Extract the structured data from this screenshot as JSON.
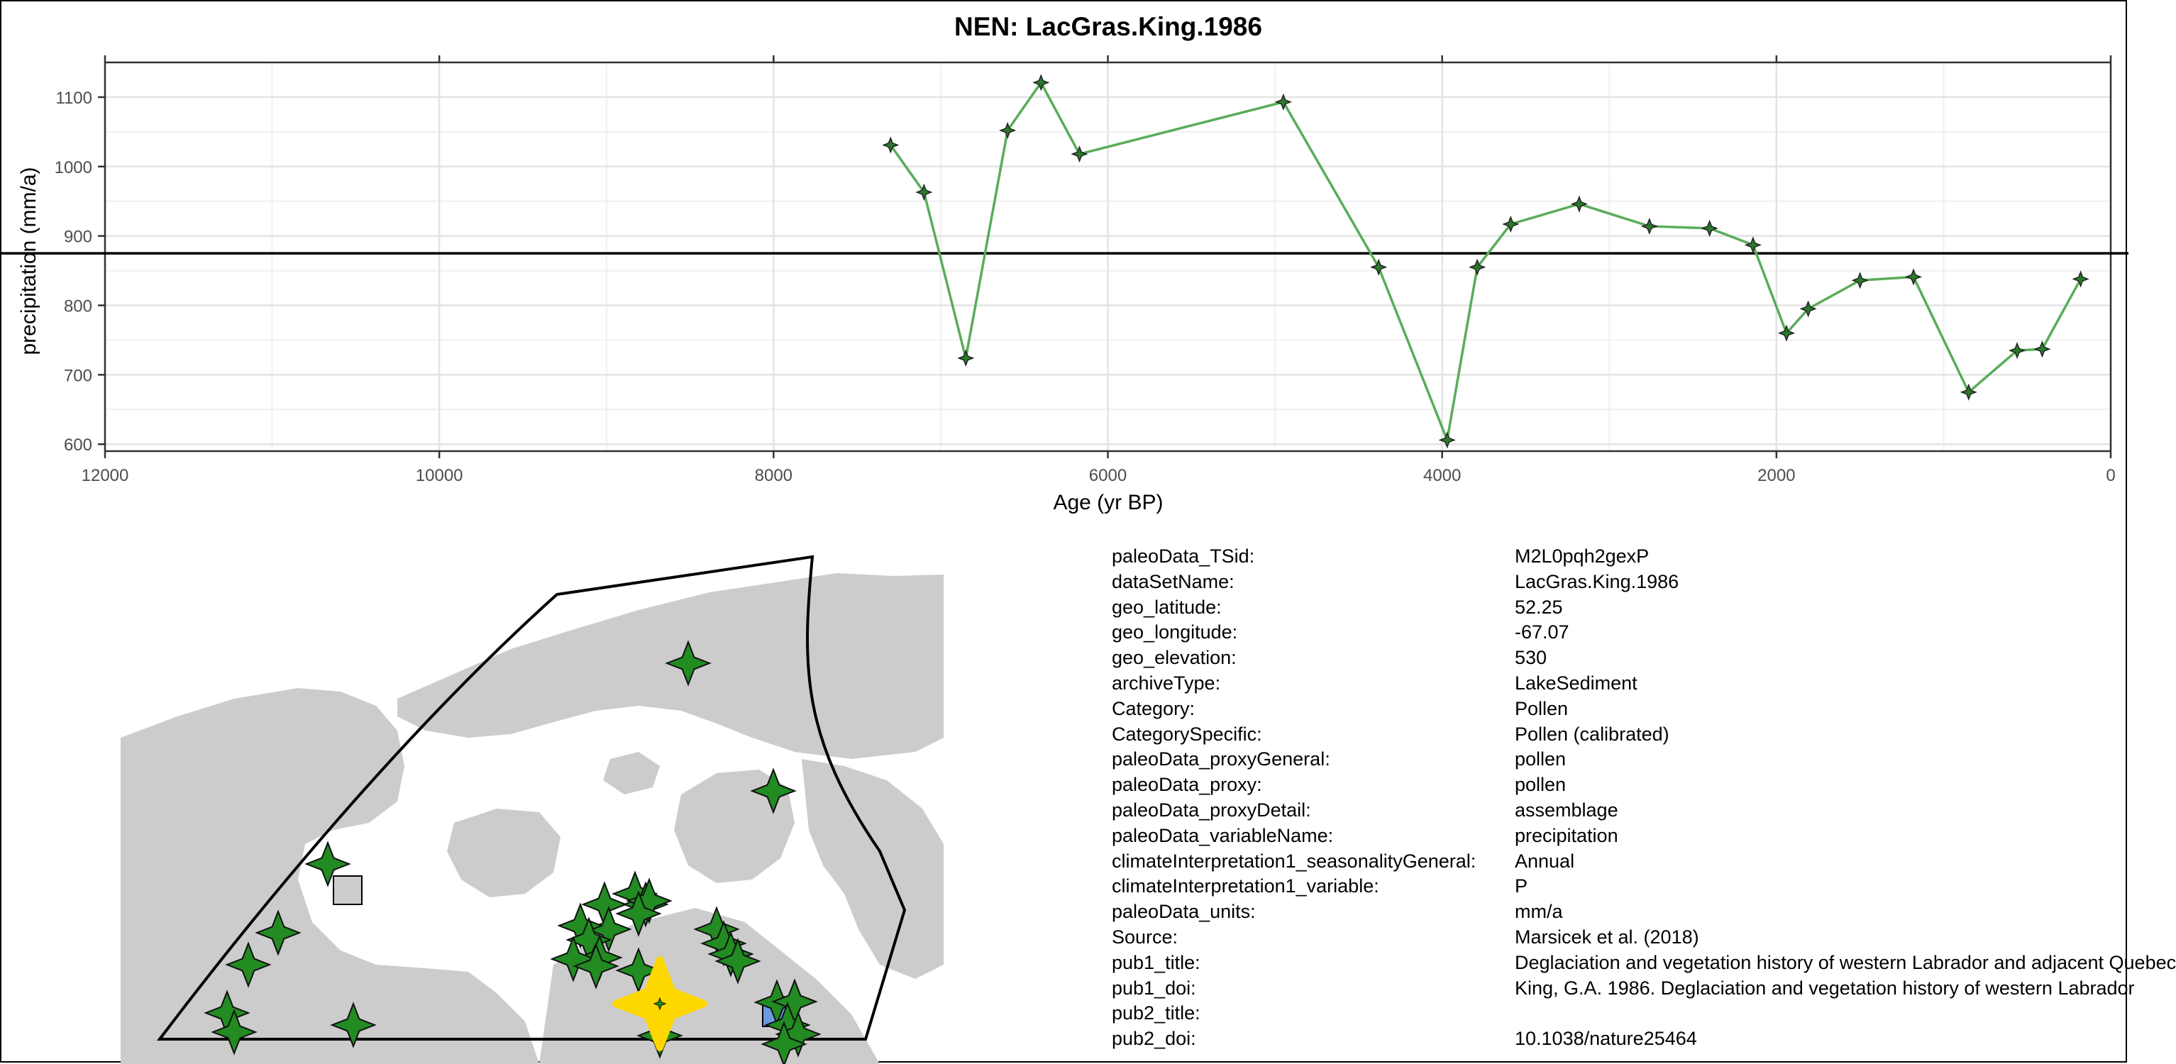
{
  "chart_data": {
    "type": "line",
    "title": "NEN: LacGras.King.1986",
    "xlabel": "Age (yr BP)",
    "ylabel": "precipitation (mm/a)",
    "x_reversed": true,
    "xlim": [
      12000,
      0
    ],
    "ylim": [
      590,
      1150
    ],
    "x_ticks": [
      12000,
      10000,
      8000,
      6000,
      4000,
      2000,
      0
    ],
    "y_ticks": [
      600,
      700,
      800,
      900,
      1000,
      1100
    ],
    "reference_line_y": 875,
    "grid": true,
    "line_color": "#5aac5a",
    "marker": "four-point-star",
    "series": [
      {
        "x": [
          7300,
          7100,
          6850,
          6600,
          6400,
          6170,
          4950,
          4380,
          3970,
          3790,
          3590,
          3180,
          2760,
          2400,
          2140,
          1940,
          1810,
          1500,
          1180,
          850,
          560,
          410,
          180
        ],
        "values": [
          1031,
          963,
          724,
          1052,
          1121,
          1018,
          1093,
          855,
          606,
          855,
          917,
          946,
          914,
          911,
          887,
          760,
          795,
          836,
          841,
          675,
          735,
          737,
          838
        ]
      }
    ]
  },
  "map": {
    "land_color": "#cccccc",
    "site_color": "#228b22",
    "target_color": "#ffd700"
  },
  "metadata": [
    {
      "key": "paleoData_TSid:",
      "value": "M2L0pqh2gexP"
    },
    {
      "key": "dataSetName:",
      "value": "LacGras.King.1986"
    },
    {
      "key": "geo_latitude:",
      "value": "52.25"
    },
    {
      "key": "geo_longitude:",
      "value": "-67.07"
    },
    {
      "key": "geo_elevation:",
      "value": "530"
    },
    {
      "key": "archiveType:",
      "value": "LakeSediment"
    },
    {
      "key": "Category:",
      "value": "Pollen"
    },
    {
      "key": "CategorySpecific:",
      "value": "Pollen (calibrated)"
    },
    {
      "key": "paleoData_proxyGeneral:",
      "value": "pollen"
    },
    {
      "key": "paleoData_proxy:",
      "value": "pollen"
    },
    {
      "key": "paleoData_proxyDetail:",
      "value": "assemblage"
    },
    {
      "key": "paleoData_variableName:",
      "value": "precipitation"
    },
    {
      "key": "climateInterpretation1_seasonalityGeneral:",
      "value": "Annual"
    },
    {
      "key": "climateInterpretation1_variable:",
      "value": "P"
    },
    {
      "key": "paleoData_units:",
      "value": "mm/a"
    },
    {
      "key": "Source:",
      "value": "Marsicek et al. (2018)"
    },
    {
      "key": "pub1_title:",
      "value": "Deglaciation and vegetation history of western Labrador and adjacent Quebec"
    },
    {
      "key": "pub1_doi:",
      "value": "King, G.A. 1986. Deglaciation and vegetation history of western Labrador"
    },
    {
      "key": "pub2_title:",
      "value": ""
    },
    {
      "key": "pub2_doi:",
      "value": "10.1038/nature25464"
    }
  ]
}
